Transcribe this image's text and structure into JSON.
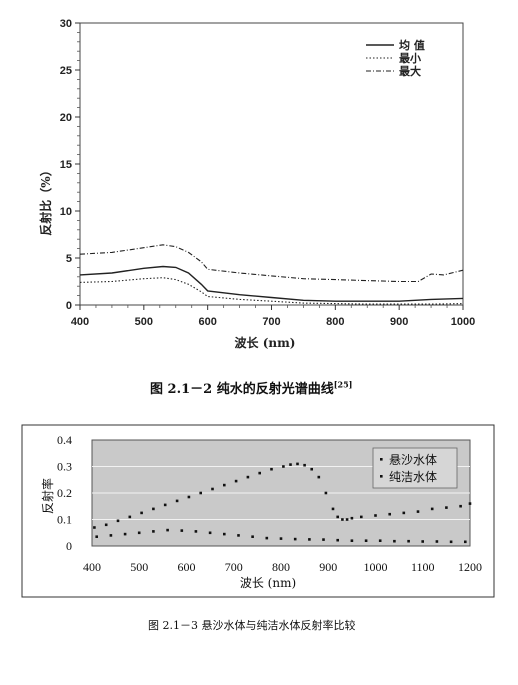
{
  "chart_data": [
    {
      "type": "line",
      "caption": "图 2.1－2 纯水的反射光谱曲线",
      "caption_ref": "[25]",
      "xlabel": "波长 (nm)",
      "ylabel": "反射比（%）",
      "xlim": [
        400,
        1000
      ],
      "ylim": [
        0,
        30
      ],
      "x_ticks": [
        400,
        500,
        600,
        700,
        800,
        900,
        1000
      ],
      "y_ticks": [
        0,
        5,
        10,
        15,
        20,
        25,
        30
      ],
      "legend_position": "top-right",
      "series": [
        {
          "name": "均 值",
          "style": "solid",
          "x": [
            400,
            450,
            500,
            530,
            550,
            570,
            590,
            600,
            650,
            700,
            750,
            800,
            850,
            900,
            950,
            1000
          ],
          "y": [
            3.2,
            3.4,
            3.9,
            4.1,
            4.0,
            3.4,
            2.2,
            1.5,
            1.1,
            0.8,
            0.5,
            0.4,
            0.4,
            0.4,
            0.6,
            0.7
          ]
        },
        {
          "name": "最小",
          "style": "dotted",
          "x": [
            400,
            450,
            500,
            530,
            550,
            570,
            590,
            600,
            650,
            700,
            750,
            800,
            850,
            900,
            950,
            1000
          ],
          "y": [
            2.4,
            2.5,
            2.8,
            2.9,
            2.7,
            2.2,
            1.4,
            0.9,
            0.6,
            0.4,
            0.2,
            0.15,
            0.1,
            0.1,
            0.1,
            0.15
          ]
        },
        {
          "name": "最大",
          "style": "dashdot",
          "x": [
            400,
            450,
            500,
            530,
            550,
            570,
            590,
            600,
            650,
            700,
            750,
            800,
            850,
            900,
            930,
            950,
            970,
            1000
          ],
          "y": [
            5.4,
            5.6,
            6.1,
            6.4,
            6.2,
            5.6,
            4.6,
            3.8,
            3.4,
            3.1,
            2.8,
            2.7,
            2.6,
            2.5,
            2.5,
            3.3,
            3.2,
            3.7
          ]
        }
      ]
    },
    {
      "type": "scatter",
      "caption": "图 2.1－3 悬沙水体与纯洁水体反射率比较",
      "xlabel": "波长 (nm)",
      "ylabel": "反射率",
      "xlim": [
        400,
        1200
      ],
      "ylim": [
        0,
        0.4
      ],
      "x_ticks": [
        400,
        500,
        600,
        700,
        800,
        900,
        1000,
        1100,
        1200
      ],
      "y_ticks": [
        0,
        0.1,
        0.2,
        0.3,
        0.4
      ],
      "y_tick_labels": [
        "0",
        "0.1",
        "0.2",
        "0.3",
        "0.4"
      ],
      "grid": true,
      "legend_position": "top-right",
      "series": [
        {
          "name": "悬沙水体",
          "x": [
            405,
            430,
            455,
            480,
            505,
            530,
            555,
            580,
            605,
            630,
            655,
            680,
            705,
            730,
            755,
            780,
            805,
            820,
            835,
            850,
            865,
            880,
            895,
            910,
            920,
            930,
            940,
            950,
            970,
            1000,
            1030,
            1060,
            1090,
            1120,
            1150,
            1180,
            1200
          ],
          "y": [
            0.07,
            0.08,
            0.095,
            0.11,
            0.125,
            0.14,
            0.155,
            0.17,
            0.185,
            0.2,
            0.215,
            0.23,
            0.245,
            0.26,
            0.275,
            0.29,
            0.3,
            0.307,
            0.31,
            0.305,
            0.29,
            0.26,
            0.2,
            0.14,
            0.11,
            0.1,
            0.1,
            0.105,
            0.11,
            0.115,
            0.12,
            0.125,
            0.13,
            0.14,
            0.145,
            0.15,
            0.16
          ]
        },
        {
          "name": "纯洁水体",
          "x": [
            410,
            440,
            470,
            500,
            530,
            560,
            590,
            620,
            650,
            680,
            710,
            740,
            770,
            800,
            830,
            860,
            890,
            920,
            950,
            980,
            1010,
            1040,
            1070,
            1100,
            1130,
            1160,
            1190
          ],
          "y": [
            0.035,
            0.04,
            0.045,
            0.05,
            0.055,
            0.06,
            0.058,
            0.055,
            0.05,
            0.045,
            0.04,
            0.035,
            0.03,
            0.028,
            0.026,
            0.025,
            0.024,
            0.022,
            0.02,
            0.02,
            0.02,
            0.018,
            0.018,
            0.017,
            0.017,
            0.016,
            0.016
          ]
        }
      ]
    }
  ]
}
